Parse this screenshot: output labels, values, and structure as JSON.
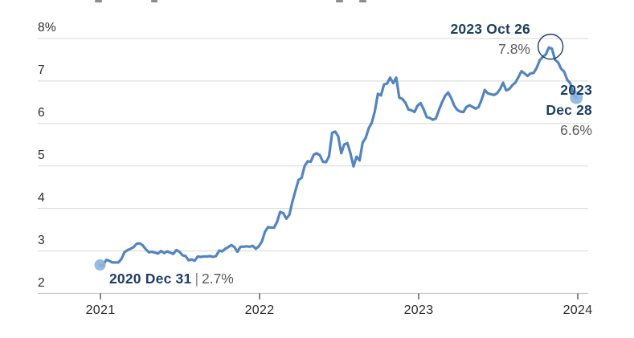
{
  "axes": {
    "y_ticks": [
      {
        "label": "8%",
        "value": 8
      },
      {
        "label": "7",
        "value": 7
      },
      {
        "label": "6",
        "value": 6
      },
      {
        "label": "5",
        "value": 5
      },
      {
        "label": "4",
        "value": 4
      },
      {
        "label": "3",
        "value": 3
      },
      {
        "label": "2",
        "value": 2
      }
    ],
    "x_ticks": [
      {
        "label": "2021",
        "year": 2021
      },
      {
        "label": "2022",
        "year": 2022
      },
      {
        "label": "2023",
        "year": 2023
      },
      {
        "label": "2024",
        "year": 2024
      }
    ]
  },
  "annotations": {
    "start": {
      "date": "2020 Dec 31",
      "separator": "|",
      "value": "2.7%"
    },
    "peak": {
      "date": "2023 Oct 26",
      "value": "7.8%"
    },
    "end": {
      "date_line1": "2023",
      "date_line2": "Dec 28",
      "value": "6.6%"
    }
  },
  "colors": {
    "line": "#5384c0",
    "marker": "#8cb2dd",
    "navy_text": "#1c3e67",
    "gray_text": "#58595b",
    "axis_text": "#2b2b2b",
    "gridline": "#d7d7d7",
    "axis_line": "#c8c8c8",
    "tick": "#444444",
    "annotation_circle": "#1c3e67"
  },
  "chart_data": {
    "type": "line",
    "unit": "percent",
    "frequency": "weekly",
    "start_date": "2020-12-31",
    "end_date": "2023-12-28",
    "ylim": [
      2,
      8
    ],
    "x_range_years": [
      2021,
      2024
    ],
    "grid": "horizontal",
    "legend": "none",
    "values": [
      2.67,
      2.65,
      2.79,
      2.77,
      2.73,
      2.73,
      2.73,
      2.81,
      2.97,
      3.02,
      3.05,
      3.09,
      3.17,
      3.18,
      3.13,
      3.04,
      2.97,
      2.98,
      2.96,
      2.94,
      3.0,
      2.95,
      2.99,
      2.96,
      2.93,
      3.02,
      2.98,
      2.9,
      2.88,
      2.78,
      2.8,
      2.77,
      2.87,
      2.86,
      2.87,
      2.87,
      2.88,
      2.86,
      2.88,
      3.01,
      2.99,
      3.05,
      3.09,
      3.14,
      3.09,
      2.98,
      3.1,
      3.1,
      3.11,
      3.1,
      3.12,
      3.05,
      3.11,
      3.22,
      3.45,
      3.56,
      3.55,
      3.55,
      3.69,
      3.92,
      3.89,
      3.76,
      3.85,
      4.16,
      4.42,
      4.67,
      4.72,
      5.0,
      5.11,
      5.1,
      5.27,
      5.3,
      5.25,
      5.1,
      5.09,
      5.23,
      5.78,
      5.81,
      5.7,
      5.3,
      5.51,
      5.54,
      5.3,
      4.99,
      5.22,
      5.13,
      5.55,
      5.66,
      5.89,
      6.02,
      6.29,
      6.7,
      6.66,
      6.92,
      6.94,
      7.08,
      6.95,
      7.08,
      6.61,
      6.58,
      6.49,
      6.33,
      6.31,
      6.27,
      6.42,
      6.48,
      6.33,
      6.15,
      6.13,
      6.09,
      6.12,
      6.32,
      6.5,
      6.65,
      6.73,
      6.6,
      6.42,
      6.32,
      6.28,
      6.27,
      6.39,
      6.43,
      6.39,
      6.35,
      6.39,
      6.57,
      6.79,
      6.71,
      6.69,
      6.67,
      6.71,
      6.81,
      6.96,
      6.78,
      6.81,
      6.9,
      6.96,
      7.09,
      7.23,
      7.18,
      7.12,
      7.18,
      7.19,
      7.31,
      7.49,
      7.57,
      7.63,
      7.79,
      7.76,
      7.5,
      7.44,
      7.29,
      7.22,
      7.03,
      6.95,
      6.67,
      6.61
    ],
    "key_points": [
      {
        "date": "2020 Dec 31",
        "value": 2.7,
        "index": 0,
        "marker": "dot"
      },
      {
        "date": "2023 Oct 26",
        "value": 7.8,
        "index": 147,
        "marker": "circle-outline"
      },
      {
        "date": "2023 Dec 28",
        "value": 6.6,
        "index": 156,
        "marker": "dot"
      }
    ]
  }
}
